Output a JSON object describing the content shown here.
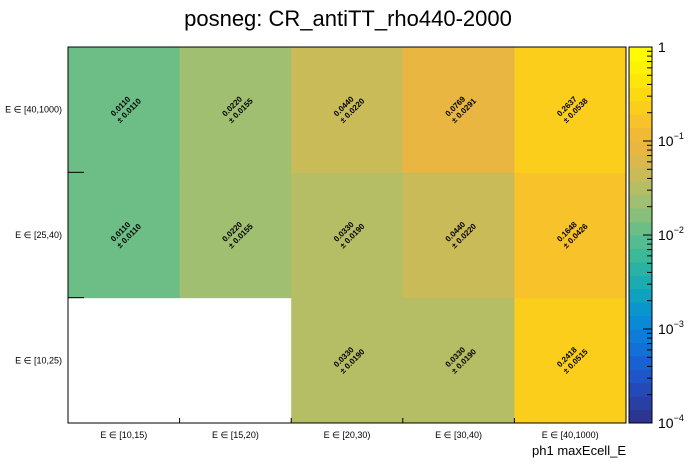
{
  "chart_data": {
    "type": "heatmap",
    "title": "posneg: CR_antiTT_rho440-2000",
    "xlabel": "ph1 maxEcell_E",
    "ylabel": "",
    "x_categories": [
      "E ∈ [10,15)",
      "E ∈ [15,20)",
      "E ∈ [20,30)",
      "E ∈ [30,40)",
      "E ∈ [40,1000)"
    ],
    "y_categories": [
      "E ∈ [10,25)",
      "E ∈ [25,40)",
      "E ∈ [40,1000)"
    ],
    "values": [
      [
        null,
        null,
        0.033,
        0.033,
        0.2418
      ],
      [
        0.011,
        0.022,
        0.033,
        0.044,
        0.1648
      ],
      [
        0.011,
        0.022,
        0.044,
        0.0769,
        0.2637
      ]
    ],
    "value_labels": [
      [
        null,
        null,
        "0.0330",
        "0.0330",
        "0.2418"
      ],
      [
        [
          "0.0110",
          "± 0.0110"
        ],
        [
          "0.0220",
          "± 0.0155"
        ],
        [
          "0.0330",
          "± 0.0190"
        ],
        [
          "0.0440",
          "± 0.0220"
        ],
        [
          "0.1648",
          "± 0.0426"
        ]
      ],
      [
        [
          "0.0110",
          "± 0.0110"
        ],
        [
          "0.0220",
          "± 0.0155"
        ],
        [
          "0.0440",
          "± 0.0220"
        ],
        [
          "0.0769",
          "± 0.0291"
        ],
        [
          "0.2637",
          "± 0.0538"
        ]
      ]
    ],
    "errors": [
      [
        null,
        null,
        0.019,
        0.019,
        0.0515
      ],
      [
        0.011,
        0.0155,
        0.019,
        0.022,
        0.0426
      ],
      [
        0.011,
        0.0155,
        0.022,
        0.0291,
        0.0538
      ]
    ],
    "colorbar": {
      "scale": "log",
      "range": [
        0.0001,
        1
      ],
      "major_ticks": [
        {
          "value": 0.0001,
          "base": "10",
          "exp": "−4"
        },
        {
          "value": 0.001,
          "base": "10",
          "exp": "−3"
        },
        {
          "value": 0.01,
          "base": "10",
          "exp": "−2"
        },
        {
          "value": 0.1,
          "base": "10",
          "exp": "−1"
        },
        {
          "value": 1,
          "base": "1",
          "exp": ""
        }
      ],
      "palette": "viridis-like",
      "colors": [
        "#2d3592",
        "#2a3fa3",
        "#2449b8",
        "#1e56c9",
        "#1762d2",
        "#1270d6",
        "#0e7dd8",
        "#0a8ad6",
        "#0896cc",
        "#0fa2bf",
        "#1cabb1",
        "#2ab3a4",
        "#3cb999",
        "#53bc90",
        "#6dbe86",
        "#87bf7b",
        "#a0bf70",
        "#b5be64",
        "#c9bb58",
        "#dab84c",
        "#e8b641",
        "#f2b936",
        "#f8c22a",
        "#fbce1c",
        "#fdda10",
        "#fde609",
        "#fdf105",
        "#fefb02"
      ]
    }
  }
}
